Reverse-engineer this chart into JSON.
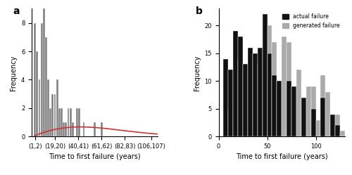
{
  "panel_a": {
    "label": "a",
    "bar_positions": [
      1,
      3,
      5,
      7,
      9,
      11,
      13,
      15,
      17,
      19,
      21,
      23,
      25,
      27,
      29,
      31,
      33,
      35,
      37,
      39,
      41,
      43,
      45,
      47,
      49,
      51,
      53,
      55,
      57,
      59,
      61,
      63,
      65,
      67,
      69,
      71,
      73,
      75,
      77,
      79,
      81,
      83,
      85,
      87,
      89,
      91,
      93,
      95,
      97,
      99,
      101,
      103,
      105,
      107
    ],
    "bar_heights": [
      8,
      6,
      4,
      8,
      9,
      7,
      4,
      2,
      3,
      3,
      4,
      2,
      2,
      1,
      1,
      2,
      2,
      1,
      0,
      2,
      2,
      0,
      1,
      0,
      0,
      0,
      0,
      1,
      0,
      0,
      1,
      0,
      0,
      0,
      0,
      0,
      0,
      0,
      0,
      0,
      0,
      0,
      0,
      0,
      0,
      0,
      0,
      0,
      0,
      0,
      0,
      0,
      0,
      0
    ],
    "xtick_labels": [
      "(1,2)",
      "(19,20)",
      "(40,41)",
      "(61,62)",
      "(82,83)",
      "(106,107)"
    ],
    "xtick_positions": [
      1,
      19,
      40,
      61,
      82,
      106
    ],
    "ylabel": "Frequency",
    "xlabel": "Time to first failure (years)",
    "ylim": [
      0,
      9
    ],
    "yticks": [
      0,
      2,
      4,
      6,
      8
    ],
    "weibull_k": 1.81,
    "weibull_lambda": 65.72,
    "weibull_scale": 55,
    "bar_color": "#808080",
    "line_color": "#cc3333"
  },
  "panel_b": {
    "label": "b",
    "bin_edges": [
      0,
      5,
      10,
      15,
      20,
      25,
      30,
      35,
      40,
      45,
      50,
      55,
      60,
      65,
      70,
      75,
      80,
      85,
      90,
      95,
      100,
      105,
      110,
      115,
      120,
      125,
      130
    ],
    "actual_heights": [
      0,
      14,
      12,
      19,
      18,
      13,
      16,
      15,
      16,
      22,
      15,
      11,
      10,
      0,
      10,
      9,
      0,
      7,
      0,
      5,
      0,
      7,
      0,
      4,
      2,
      0,
      0
    ],
    "generated_heights": [
      0,
      7,
      5,
      12,
      14,
      13,
      13,
      15,
      13,
      19,
      20,
      17,
      10,
      18,
      17,
      9,
      12,
      7,
      9,
      9,
      3,
      11,
      8,
      3,
      4,
      1,
      0
    ],
    "ylabel": "Frequency",
    "xlabel": "Time to first failure (years)",
    "ylim": [
      0,
      23
    ],
    "yticks": [
      0,
      5,
      10,
      15,
      20
    ],
    "xticks": [
      0,
      50,
      100
    ],
    "actual_color": "#111111",
    "generated_color": "#aaaaaa",
    "legend_actual": "actual failure",
    "legend_generated": "generated failure"
  }
}
